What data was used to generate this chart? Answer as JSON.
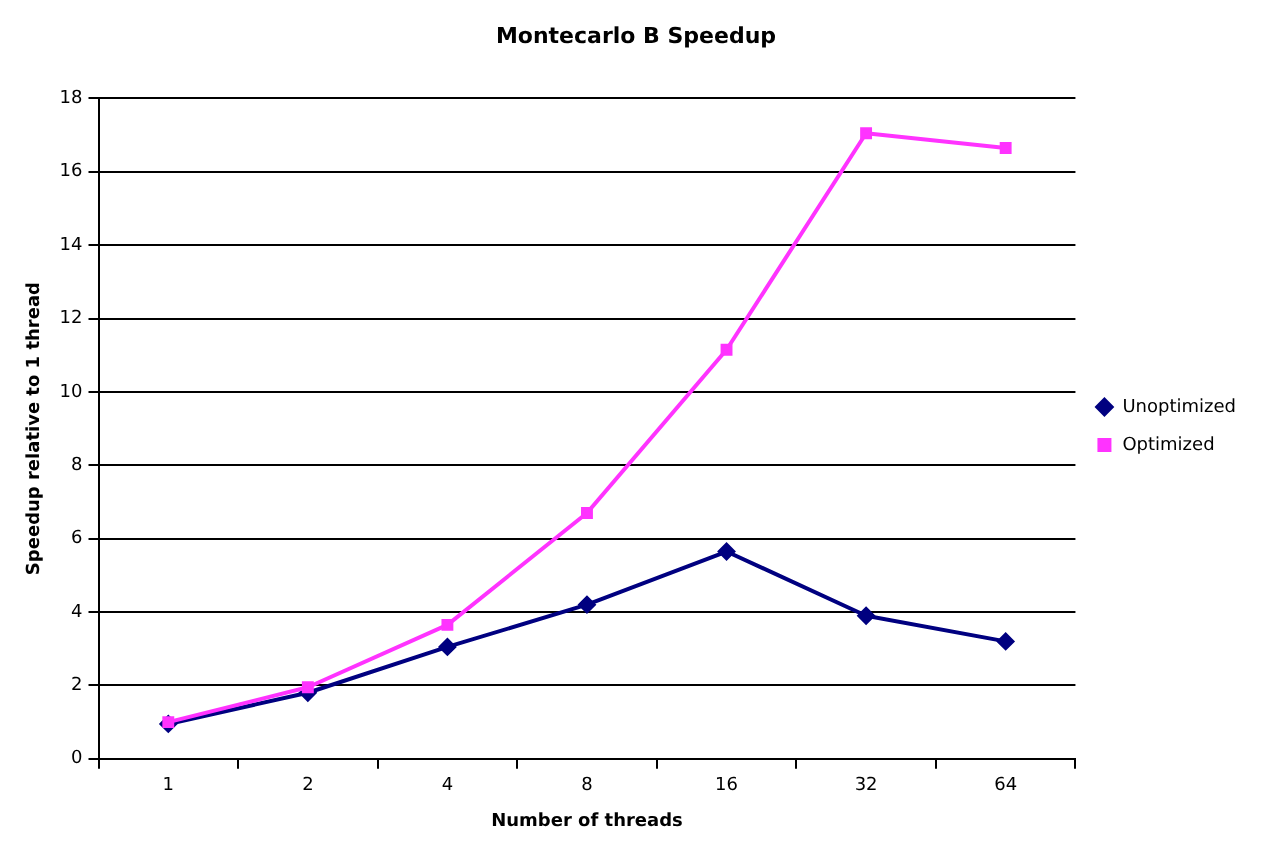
{
  "chart_data": {
    "type": "line",
    "title": "Montecarlo B Speedup",
    "xlabel": "Number of threads",
    "ylabel": "Speedup relative to 1 thread",
    "categories": [
      "1",
      "2",
      "4",
      "8",
      "16",
      "32",
      "64"
    ],
    "series": [
      {
        "name": "Unoptimized",
        "color": "#000080",
        "marker": "diamond",
        "values": [
          0.95,
          1.8,
          3.05,
          4.2,
          5.65,
          3.9,
          3.2
        ]
      },
      {
        "name": "Optimized",
        "color": "#ff33ff",
        "marker": "square",
        "values": [
          1.0,
          1.95,
          3.65,
          6.7,
          11.15,
          17.05,
          16.65
        ]
      }
    ],
    "ylim": [
      0,
      18
    ],
    "yticks": [
      0,
      2,
      4,
      6,
      8,
      10,
      12,
      14,
      16,
      18
    ],
    "grid": "y",
    "legend": "right"
  }
}
